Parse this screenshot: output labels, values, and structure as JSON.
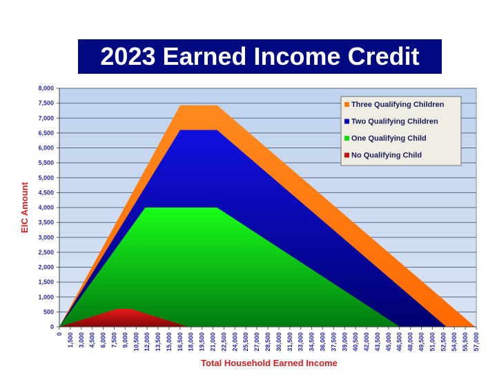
{
  "chart_data": {
    "type": "area",
    "title": "2023 Earned Income Credit",
    "xlabel": "Total Household Earned Income",
    "ylabel": "EIC Amount",
    "xlim": [
      0,
      57000
    ],
    "ylim": [
      0,
      8000
    ],
    "x_ticks": [
      "0",
      "1,500",
      "3,000",
      "4,500",
      "6,000",
      "7,500",
      "9,000",
      "10,500",
      "12,000",
      "13,500",
      "15,000",
      "16,500",
      "18,000",
      "19,500",
      "21,000",
      "22,500",
      "24,000",
      "25,500",
      "27,000",
      "28,500",
      "30,000",
      "31,500",
      "33,000",
      "34,500",
      "36,000",
      "37,500",
      "39,000",
      "40,500",
      "42,000",
      "43,500",
      "45,000",
      "46,500",
      "48,000",
      "49,500",
      "51,000",
      "52,500",
      "54,000",
      "55,500",
      "57,000"
    ],
    "y_ticks": [
      "0",
      "500",
      "1,000",
      "1,500",
      "2,000",
      "2,500",
      "3,000",
      "3,500",
      "4,000",
      "4,500",
      "5,000",
      "5,500",
      "6,000",
      "6,500",
      "7,000",
      "7,500",
      "8,000"
    ],
    "grid": true,
    "legend": "top-right",
    "series": [
      {
        "name": "Three Qualifying Children",
        "color": "#ff7a10",
        "points": [
          [
            0,
            0
          ],
          [
            16510,
            7430
          ],
          [
            21560,
            7430
          ],
          [
            56840,
            0
          ]
        ]
      },
      {
        "name": "Two Qualifying Children",
        "color": "#0a0ab4",
        "points": [
          [
            0,
            0
          ],
          [
            16510,
            6600
          ],
          [
            21560,
            6600
          ],
          [
            52920,
            0
          ]
        ]
      },
      {
        "name": "One Qualifying Child",
        "color": "#12d812",
        "points": [
          [
            0,
            0
          ],
          [
            11750,
            4000
          ],
          [
            21560,
            4000
          ],
          [
            46560,
            0
          ]
        ]
      },
      {
        "name": "No Qualifying Child",
        "color": "#c81010",
        "points": [
          [
            0,
            0
          ],
          [
            7840,
            600
          ],
          [
            9800,
            600
          ],
          [
            17640,
            0
          ]
        ]
      }
    ]
  }
}
